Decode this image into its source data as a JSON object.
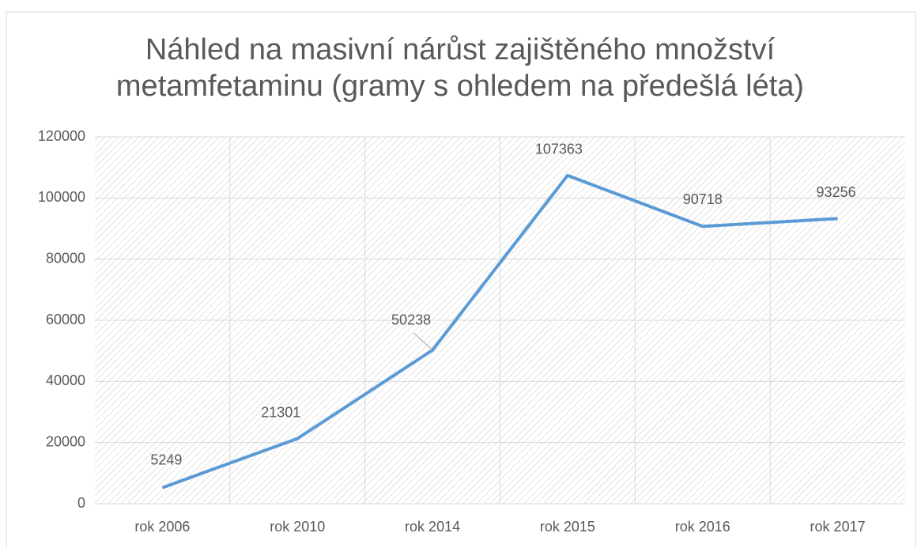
{
  "chart_data": {
    "type": "line",
    "title": "Náhled na masivní nárůst zajištěného množství metamfetaminu (gramy s ohledem na předešlá léta)",
    "categories": [
      "rok 2006",
      "rok 2010",
      "rok 2014",
      "rok 2015",
      "rok 2016",
      "rok 2017"
    ],
    "values": [
      5249,
      21301,
      50238,
      107363,
      90718,
      93256
    ],
    "color": "#5b9bd5",
    "ylim": [
      0,
      120000
    ],
    "yticks": [
      0,
      20000,
      40000,
      60000,
      80000,
      100000,
      120000
    ],
    "grid": true
  }
}
